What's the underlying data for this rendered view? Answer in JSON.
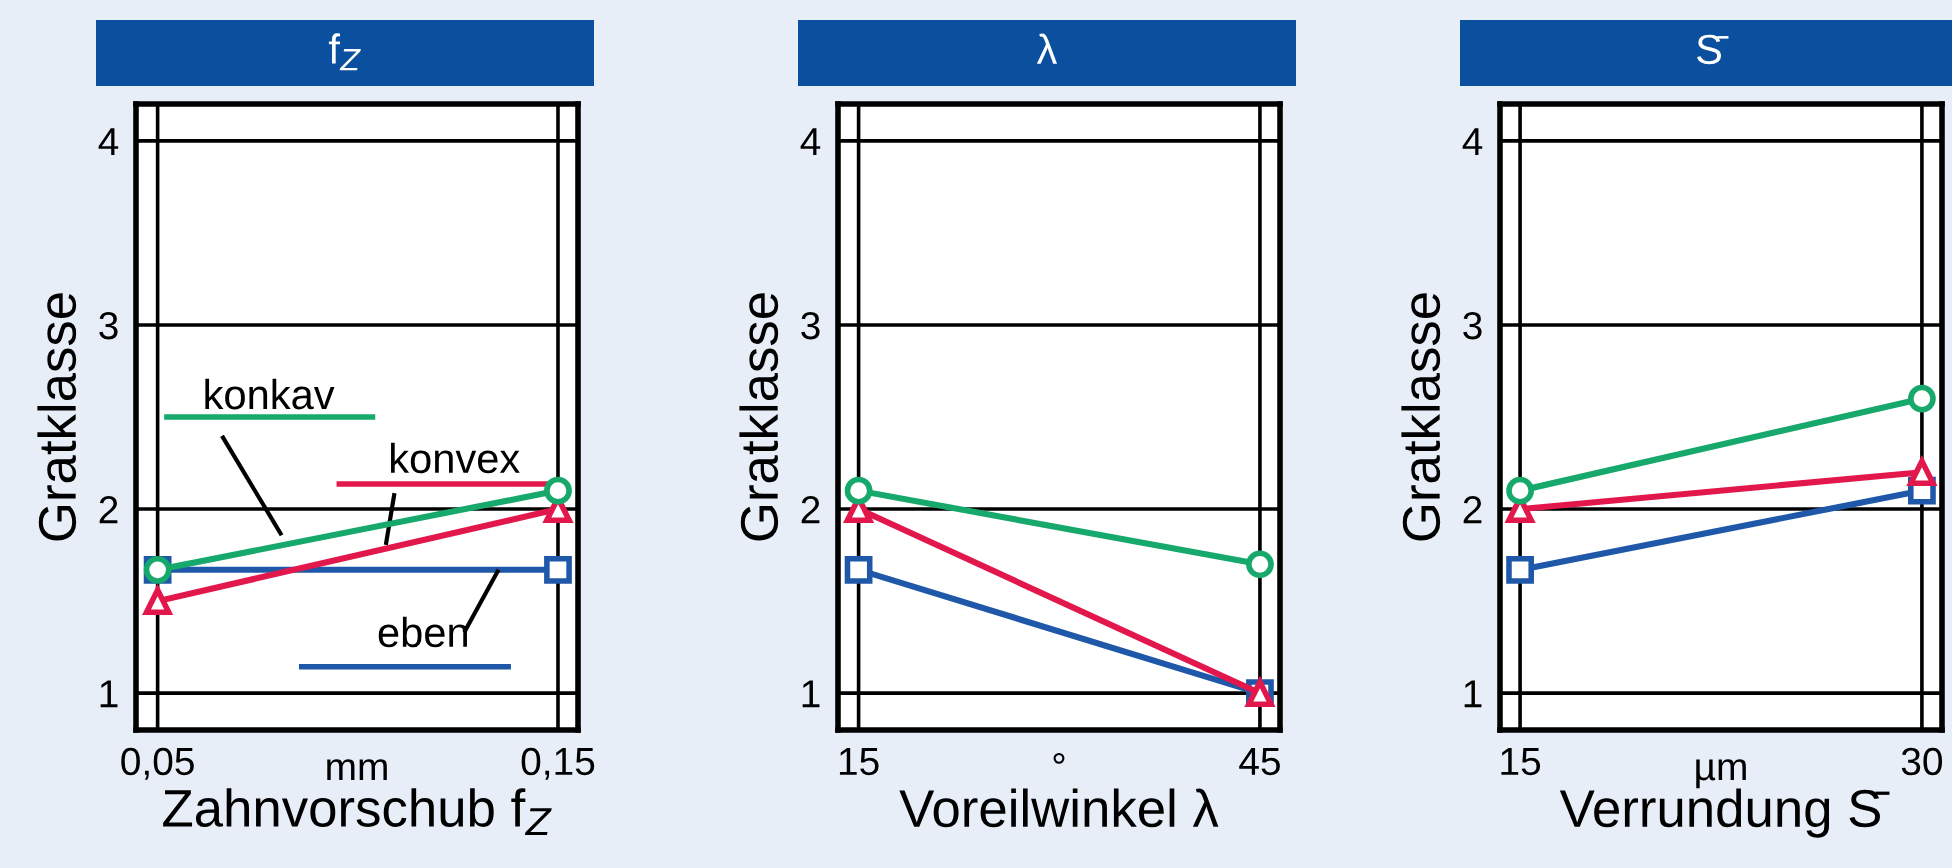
{
  "chart_data": [
    {
      "type": "line",
      "title": "f$_{Z}$",
      "xlabel": "Zahnvorschub f$_{Z}$",
      "ylabel": "Gratklasse",
      "annotations": [
        "mm"
      ],
      "x": [
        0.05,
        0.15
      ],
      "xlim": [
        0.0446,
        0.155
      ],
      "xticks": [
        {
          "value": 0.05,
          "label": "0,05"
        },
        {
          "value": 0.15,
          "label": "0,15"
        }
      ],
      "ylim": [
        0.8,
        4.2
      ],
      "yticks": [
        1,
        2,
        3,
        4
      ],
      "grid": true,
      "legend": false,
      "line_style": "solid",
      "series": [
        {
          "name": "konkav",
          "color": "#17a86b",
          "marker": "circle",
          "values": [
            1.67,
            2.1
          ]
        },
        {
          "name": "konvex",
          "color": "#e2184c",
          "marker": "triangle",
          "values": [
            1.5,
            2.0
          ]
        },
        {
          "name": "eben",
          "color": "#1f58a8",
          "marker": "square",
          "values": [
            1.67,
            1.67
          ]
        }
      ]
    },
    {
      "type": "line",
      "title": "λ",
      "xlabel": "Voreilwinkel λ",
      "ylabel": "Gratklasse",
      "annotations": [
        "°"
      ],
      "x": [
        15,
        45
      ],
      "xlim": [
        13.46,
        46.5
      ],
      "xticks": [
        15,
        45
      ],
      "ylim": [
        0.8,
        4.2
      ],
      "yticks": [
        1,
        2,
        3,
        4
      ],
      "grid": true,
      "legend": false,
      "line_style": "solid",
      "series": [
        {
          "color": "#17a86b",
          "marker": "circle",
          "values": [
            2.1,
            1.7
          ]
        },
        {
          "color": "#e2184c",
          "marker": "triangle",
          "values": [
            2.0,
            1.0
          ]
        },
        {
          "color": "#1f58a8",
          "marker": "square",
          "values": [
            1.67,
            1.0
          ]
        }
      ]
    },
    {
      "type": "line",
      "title": "S̄",
      "xlabel": "Verrundung S̄",
      "ylabel": "Gratklasse",
      "annotations": [
        "µm"
      ],
      "x": [
        15,
        30
      ],
      "xlim": [
        14.25,
        30.75
      ],
      "xticks": [
        15,
        30
      ],
      "ylim": [
        0.8,
        4.2
      ],
      "yticks": [
        1,
        2,
        3,
        4
      ],
      "grid": true,
      "legend": false,
      "line_style": "solid",
      "series": [
        {
          "color": "#17a86b",
          "marker": "circle",
          "values": [
            2.1,
            2.6
          ]
        },
        {
          "color": "#e2184c",
          "marker": "triangle",
          "values": [
            2.0,
            2.2
          ]
        },
        {
          "color": "#1f58a8",
          "marker": "square",
          "values": [
            1.67,
            2.1
          ]
        }
      ]
    }
  ]
}
